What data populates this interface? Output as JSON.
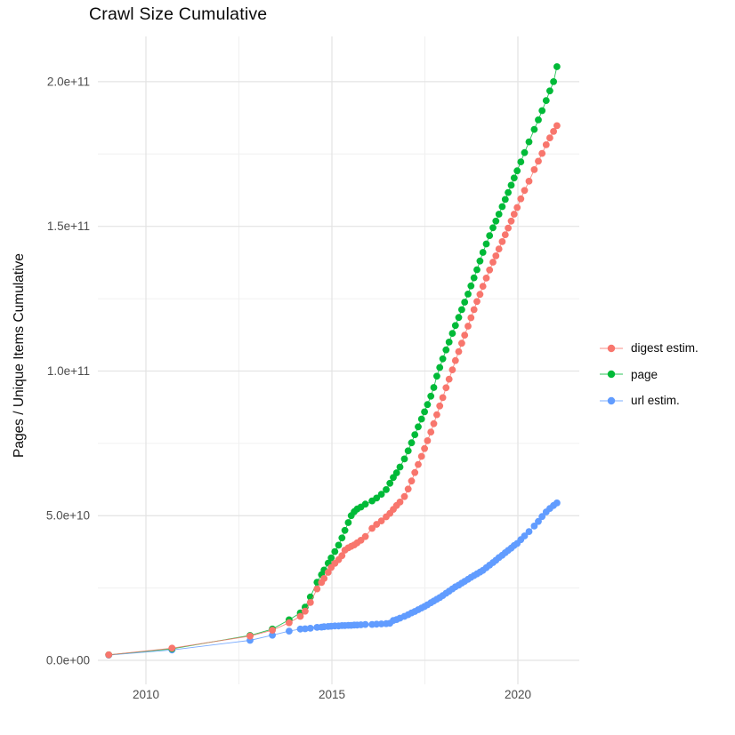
{
  "title": "Crawl Size Cumulative",
  "y_axis_title": "Pages / Unique Items Cumulative",
  "legend": {
    "position": "right",
    "items": [
      {
        "label": "digest estim.",
        "color": "#F8766D"
      },
      {
        "label": "page",
        "color": "#00BA38"
      },
      {
        "label": "url estim.",
        "color": "#619CFF"
      }
    ]
  },
  "colors": {
    "digest": "#F8766D",
    "page": "#00BA38",
    "url": "#619CFF",
    "grid_major": "#e3e3e3",
    "grid_minor": "#f0f0f0",
    "tick_text": "#4d4d4d",
    "title_text": "#0a0a0a",
    "background": "#ffffff"
  },
  "chart_data": {
    "type": "scatter",
    "title": "Crawl Size Cumulative",
    "xlabel": "",
    "ylabel": "Pages / Unique Items Cumulative",
    "grid": true,
    "legend_position": "right",
    "x_unit": "year (decimal)",
    "y_unit": "billions of pages / unique items (1e9)",
    "xlim": [
      2008.7,
      2021.65
    ],
    "ylim_billions": [
      -8.3,
      215.6
    ],
    "x_ticks": [
      2010,
      2015,
      2020
    ],
    "x_tick_labels": [
      "2010",
      "2015",
      "2020"
    ],
    "x_minor_ticks": [
      2012.5,
      2017.5
    ],
    "y_ticks_billions": [
      0,
      50,
      100,
      150,
      200
    ],
    "y_tick_labels": [
      "0.0e+00",
      "5.0e+10",
      "1.0e+11",
      "1.5e+11",
      "2.0e+11"
    ],
    "y_minor_ticks_billions": [
      25,
      75,
      125,
      175
    ],
    "x": [
      2009.0,
      2010.7,
      2012.8,
      2013.4,
      2013.85,
      2014.15,
      2014.28,
      2014.42,
      2014.6,
      2014.72,
      2014.79,
      2014.9,
      2014.98,
      2015.08,
      2015.18,
      2015.27,
      2015.35,
      2015.44,
      2015.52,
      2015.6,
      2015.68,
      2015.78,
      2015.9,
      2016.08,
      2016.2,
      2016.33,
      2016.46,
      2016.56,
      2016.65,
      2016.74,
      2016.83,
      2016.95,
      2017.05,
      2017.14,
      2017.23,
      2017.32,
      2017.41,
      2017.49,
      2017.57,
      2017.66,
      2017.74,
      2017.82,
      2017.9,
      2017.98,
      2018.07,
      2018.15,
      2018.24,
      2018.32,
      2018.41,
      2018.49,
      2018.57,
      2018.66,
      2018.74,
      2018.82,
      2018.9,
      2018.98,
      2019.06,
      2019.15,
      2019.24,
      2019.33,
      2019.41,
      2019.49,
      2019.58,
      2019.66,
      2019.74,
      2019.82,
      2019.9,
      2019.98,
      2020.08,
      2020.18,
      2020.3,
      2020.44,
      2020.55,
      2020.65,
      2020.76,
      2020.86,
      2020.96,
      2021.05
    ],
    "series": [
      {
        "name": "url estim.",
        "color": "#619CFF",
        "values_billions": [
          1.8,
          3.6,
          6.9,
          8.7,
          10.1,
          10.8,
          10.9,
          11.1,
          11.4,
          11.5,
          11.6,
          11.7,
          11.8,
          11.9,
          11.9,
          12.0,
          12.0,
          12.1,
          12.1,
          12.2,
          12.2,
          12.3,
          12.4,
          12.4,
          12.5,
          12.6,
          12.7,
          12.8,
          13.8,
          14.1,
          14.6,
          15.2,
          15.8,
          16.4,
          16.9,
          17.5,
          18.1,
          18.6,
          19.2,
          19.9,
          20.5,
          21.1,
          21.7,
          22.4,
          23.2,
          23.9,
          24.7,
          25.4,
          26.0,
          26.7,
          27.3,
          28.0,
          28.7,
          29.3,
          29.9,
          30.5,
          31.1,
          32.0,
          32.9,
          33.8,
          34.6,
          35.5,
          36.3,
          37.2,
          38.0,
          38.8,
          39.7,
          40.4,
          41.7,
          43.0,
          44.5,
          46.4,
          48.0,
          49.7,
          51.3,
          52.5,
          53.5,
          54.4
        ]
      },
      {
        "name": "page",
        "color": "#00BA38",
        "values_billions": [
          1.9,
          4.0,
          8.6,
          10.8,
          14.0,
          16.4,
          18.4,
          21.9,
          27.0,
          29.6,
          31.2,
          33.6,
          35.4,
          37.6,
          39.8,
          42.3,
          44.9,
          47.6,
          50.0,
          51.4,
          52.3,
          53.0,
          54.0,
          55.1,
          56.1,
          57.4,
          59.0,
          61.2,
          63.2,
          64.8,
          66.8,
          69.6,
          72.4,
          75.2,
          78.0,
          80.7,
          83.4,
          85.9,
          88.4,
          91.3,
          94.3,
          98.2,
          101.2,
          104.2,
          107.3,
          110.0,
          113.0,
          115.7,
          118.5,
          121.2,
          123.8,
          126.6,
          129.4,
          132.2,
          135.0,
          138.0,
          141.0,
          143.9,
          146.8,
          149.5,
          151.8,
          154.2,
          156.8,
          159.3,
          161.7,
          164.2,
          166.7,
          169.2,
          172.3,
          175.5,
          179.2,
          183.5,
          186.8,
          190.0,
          193.5,
          196.8,
          200.0,
          205.2
        ]
      },
      {
        "name": "digest estim.",
        "color": "#F8766D",
        "values_billions": [
          1.9,
          4.2,
          8.4,
          10.4,
          13.0,
          15.2,
          17.0,
          20.0,
          24.7,
          26.9,
          28.3,
          30.4,
          32.1,
          33.5,
          34.8,
          36.2,
          38.1,
          38.9,
          39.4,
          39.9,
          40.6,
          41.5,
          42.8,
          45.6,
          47.0,
          48.2,
          49.6,
          50.8,
          52.2,
          53.5,
          54.7,
          56.6,
          59.2,
          62.0,
          64.9,
          67.7,
          70.5,
          73.2,
          75.9,
          78.9,
          81.8,
          84.9,
          87.9,
          90.8,
          94.2,
          97.2,
          100.4,
          103.6,
          106.7,
          109.6,
          112.4,
          115.5,
          118.4,
          121.2,
          124.0,
          126.5,
          129.3,
          132.1,
          134.9,
          137.6,
          139.8,
          142.2,
          144.7,
          147.1,
          149.4,
          151.8,
          154.2,
          156.5,
          159.5,
          162.4,
          165.6,
          169.6,
          172.5,
          175.2,
          178.2,
          180.6,
          182.8,
          184.8
        ]
      }
    ]
  }
}
